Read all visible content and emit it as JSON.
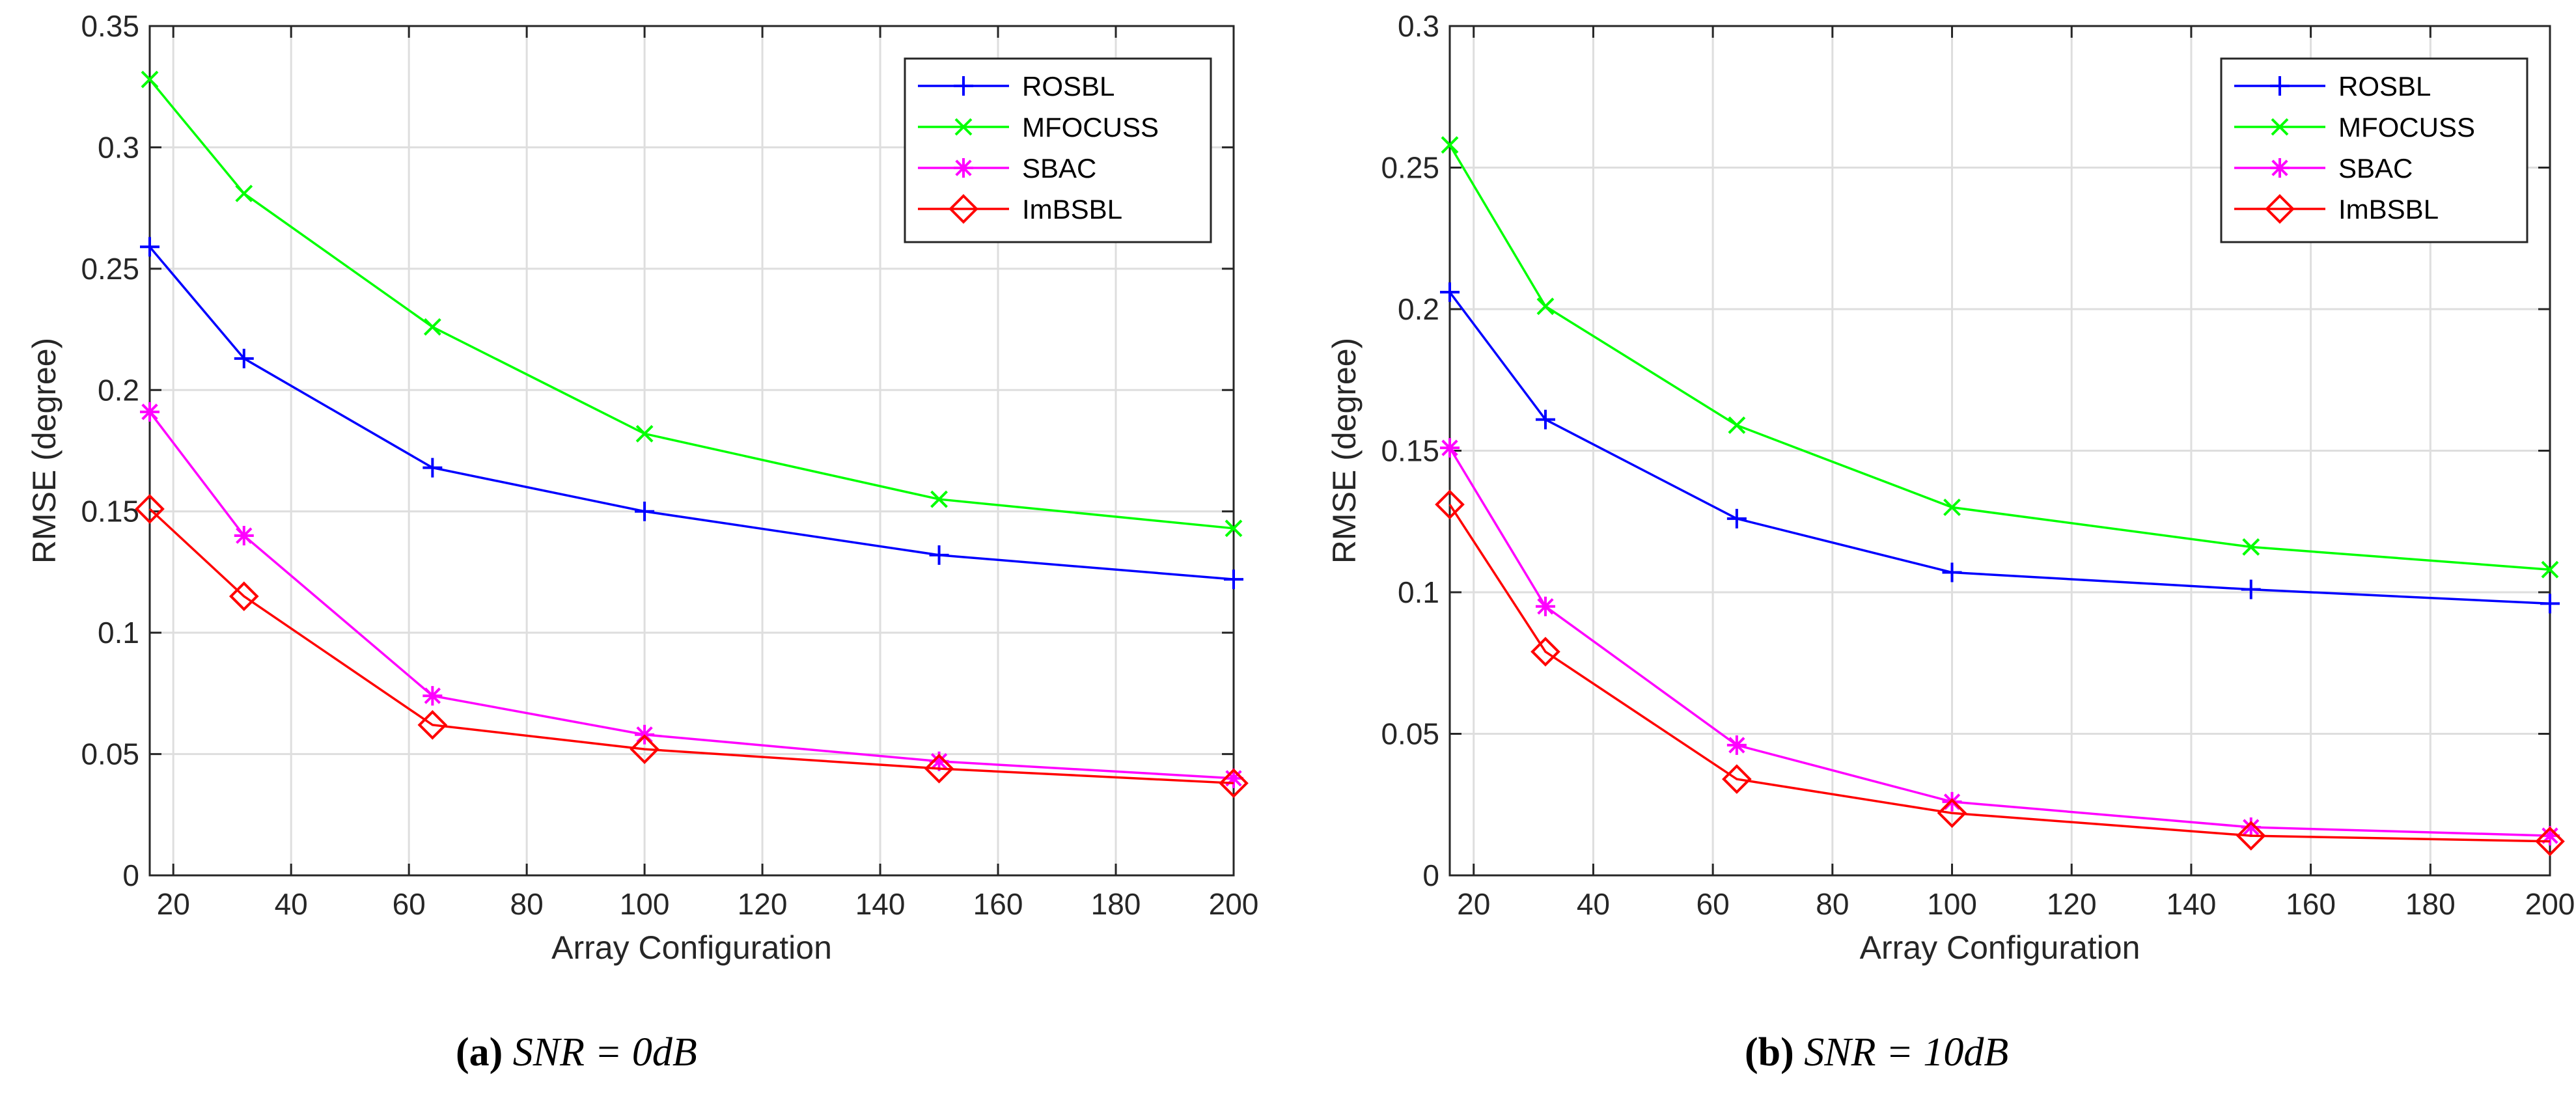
{
  "chart_data": [
    {
      "type": "line",
      "panel": "a",
      "title": "",
      "xlabel": "Array Configuration",
      "ylabel": "RMSE (degree)",
      "xlim": [
        16,
        200
      ],
      "ylim": [
        0,
        0.35
      ],
      "xticks": [
        20,
        40,
        60,
        80,
        100,
        120,
        140,
        160,
        180,
        200
      ],
      "yticks": [
        0,
        0.05,
        0.1,
        0.15,
        0.2,
        0.25,
        0.3,
        0.35
      ],
      "xtick_labels": [
        "20",
        "40",
        "60",
        "80",
        "100",
        "120",
        "140",
        "160",
        "180",
        "200"
      ],
      "ytick_labels": [
        "0",
        "0.05",
        "0.1",
        "0.15",
        "0.2",
        "0.25",
        "0.3",
        "0.35"
      ],
      "grid": true,
      "legend_position": "top-right",
      "x": [
        16,
        32,
        64,
        100,
        150,
        200
      ],
      "series": [
        {
          "name": "ROSBL",
          "color": "#0000ff",
          "marker": "plus",
          "values": [
            0.259,
            0.213,
            0.168,
            0.15,
            0.132,
            0.122
          ]
        },
        {
          "name": "MFOCUSS",
          "color": "#00ff00",
          "marker": "cross",
          "values": [
            0.328,
            0.281,
            0.226,
            0.182,
            0.155,
            0.143
          ]
        },
        {
          "name": "SBAC",
          "color": "#ff00ff",
          "marker": "asterisk",
          "values": [
            0.191,
            0.14,
            0.074,
            0.058,
            0.047,
            0.04
          ]
        },
        {
          "name": "ImBSBL",
          "color": "#ff0000",
          "marker": "diamond",
          "values": [
            0.151,
            0.115,
            0.062,
            0.052,
            0.044,
            0.038
          ]
        }
      ],
      "caption": {
        "label": "(a)",
        "math": "SNR = 0dB"
      }
    },
    {
      "type": "line",
      "panel": "b",
      "title": "",
      "xlabel": "Array Configuration",
      "ylabel": "RMSE (degree)",
      "xlim": [
        16,
        200
      ],
      "ylim": [
        0,
        0.3
      ],
      "xticks": [
        20,
        40,
        60,
        80,
        100,
        120,
        140,
        160,
        180,
        200
      ],
      "yticks": [
        0,
        0.05,
        0.1,
        0.15,
        0.2,
        0.25,
        0.3
      ],
      "xtick_labels": [
        "20",
        "40",
        "60",
        "80",
        "100",
        "120",
        "140",
        "160",
        "180",
        "200"
      ],
      "ytick_labels": [
        "0",
        "0.05",
        "0.1",
        "0.15",
        "0.2",
        "0.25",
        "0.3"
      ],
      "grid": true,
      "legend_position": "top-right",
      "x": [
        16,
        32,
        64,
        100,
        150,
        200
      ],
      "series": [
        {
          "name": "ROSBL",
          "color": "#0000ff",
          "marker": "plus",
          "values": [
            0.206,
            0.161,
            0.126,
            0.107,
            0.101,
            0.096
          ]
        },
        {
          "name": "MFOCUSS",
          "color": "#00ff00",
          "marker": "cross",
          "values": [
            0.258,
            0.201,
            0.159,
            0.13,
            0.116,
            0.108
          ]
        },
        {
          "name": "SBAC",
          "color": "#ff00ff",
          "marker": "asterisk",
          "values": [
            0.151,
            0.095,
            0.046,
            0.026,
            0.017,
            0.014
          ]
        },
        {
          "name": "ImBSBL",
          "color": "#ff0000",
          "marker": "diamond",
          "values": [
            0.131,
            0.079,
            0.034,
            0.022,
            0.014,
            0.012
          ]
        }
      ],
      "caption": {
        "label": "(b)",
        "math": "SNR = 10dB"
      }
    }
  ]
}
